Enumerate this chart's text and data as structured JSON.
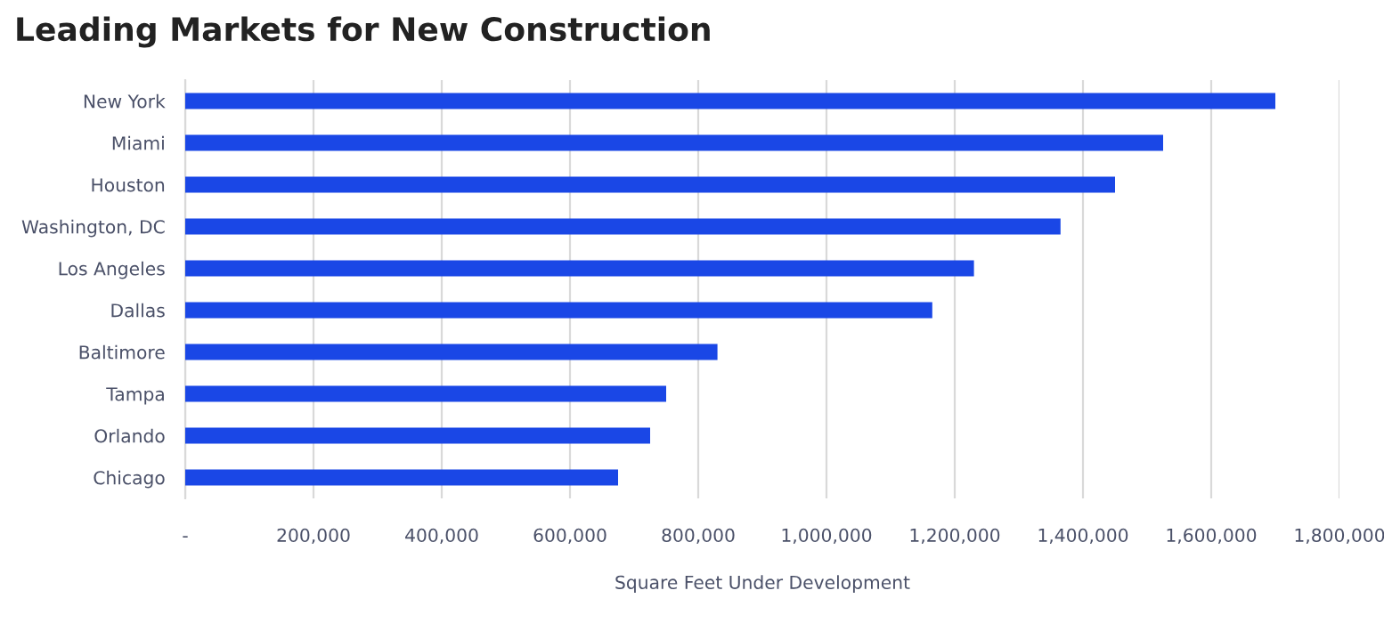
{
  "chart_data": {
    "type": "bar",
    "orientation": "horizontal",
    "title": "Leading Markets for New Construction",
    "xlabel": "Square Feet Under Development",
    "categories": [
      "New York",
      "Miami",
      "Houston",
      "Washington, DC",
      "Los Angeles",
      "Dallas",
      "Baltimore",
      "Tampa",
      "Orlando",
      "Chicago"
    ],
    "values": [
      1700000,
      1525000,
      1450000,
      1365000,
      1230000,
      1165000,
      830000,
      750000,
      725000,
      675000
    ],
    "color": "#1a47e6",
    "xlim": [
      0,
      1800000
    ],
    "xticks": [
      {
        "value": 0,
        "label": "-"
      },
      {
        "value": 200000,
        "label": "200,000"
      },
      {
        "value": 400000,
        "label": "400,000"
      },
      {
        "value": 600000,
        "label": "600,000"
      },
      {
        "value": 800000,
        "label": "800,000"
      },
      {
        "value": 1000000,
        "label": "1,000,000"
      },
      {
        "value": 1200000,
        "label": "1,200,000"
      },
      {
        "value": 1400000,
        "label": "1,400,000"
      },
      {
        "value": 1600000,
        "label": "1,600,000"
      },
      {
        "value": 1800000,
        "label": "1,800,000"
      }
    ],
    "grid": "x"
  }
}
